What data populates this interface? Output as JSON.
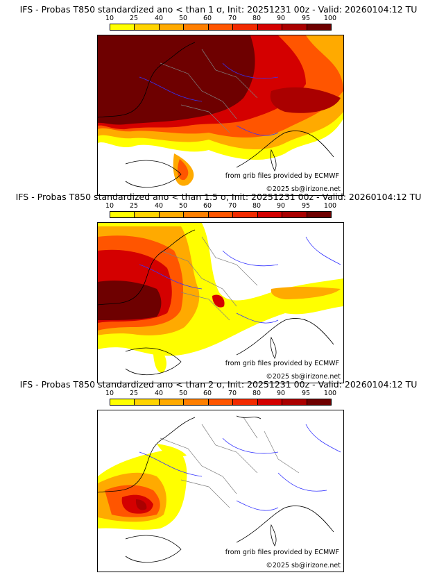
{
  "colors": {
    "scale": [
      "#ffff00",
      "#ffd400",
      "#ffaa00",
      "#ff7f00",
      "#ff5500",
      "#f22a00",
      "#d40000",
      "#aa0000",
      "#6e0000"
    ],
    "outline": "#000000",
    "rivers": "#3333ff",
    "borders": "#808080"
  },
  "scale_ticks": [
    "10",
    "25",
    "40",
    "50",
    "60",
    "70",
    "80",
    "90",
    "95",
    "100"
  ],
  "panels": [
    {
      "title": "IFS - Probas T850  standardized ano < than 1 σ, Init: 20251231 00z - Valid: 20260104:12 TU",
      "credit_source": "from grib files provided by ECMWF",
      "credit_copyright": "©2025 sb@irizone.net"
    },
    {
      "title": "IFS - Probas T850  standardized ano < than 1.5 σ, Init: 20251231 00z - Valid: 20260104:12 TU",
      "credit_source": "from grib files provided by ECMWF",
      "credit_copyright": "©2025 sb@irizone.net"
    },
    {
      "title": "IFS - Probas T850  standardized ano < than 2 σ, Init: 20251231 00z - Valid: 20260104:12 TU",
      "credit_source": "from grib files provided by ECMWF",
      "credit_copyright": "©2025 sb@irizone.net"
    }
  ]
}
